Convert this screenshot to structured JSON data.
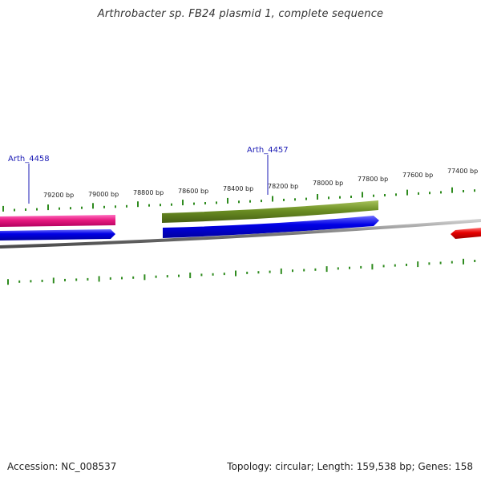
{
  "title": "Arthrobacter sp. FB24 plasmid 1, complete sequence",
  "footer": {
    "accession": "Accession: NC_008537",
    "summary": "Topology: circular; Length: 159,538 bp; Genes: 158"
  },
  "colors": {
    "tick": "#2e8b1e",
    "backbone": "#8a8a8a",
    "gene_pink": "#e6197f",
    "gene_olive": "#6b8e23",
    "gene_blue": "#0000e6",
    "gene_red": "#e60000",
    "gene_label": "#1a1ab4",
    "ruler_text": "#222222"
  },
  "ruler": {
    "labels": [
      "79200 bp",
      "79000 bp",
      "78800 bp",
      "78600 bp",
      "78400 bp",
      "78200 bp",
      "78000 bp",
      "77800 bp",
      "77600 bp",
      "77400 bp"
    ]
  },
  "genes": {
    "labels": [
      "Arth_4458",
      "Arth_4457"
    ]
  }
}
